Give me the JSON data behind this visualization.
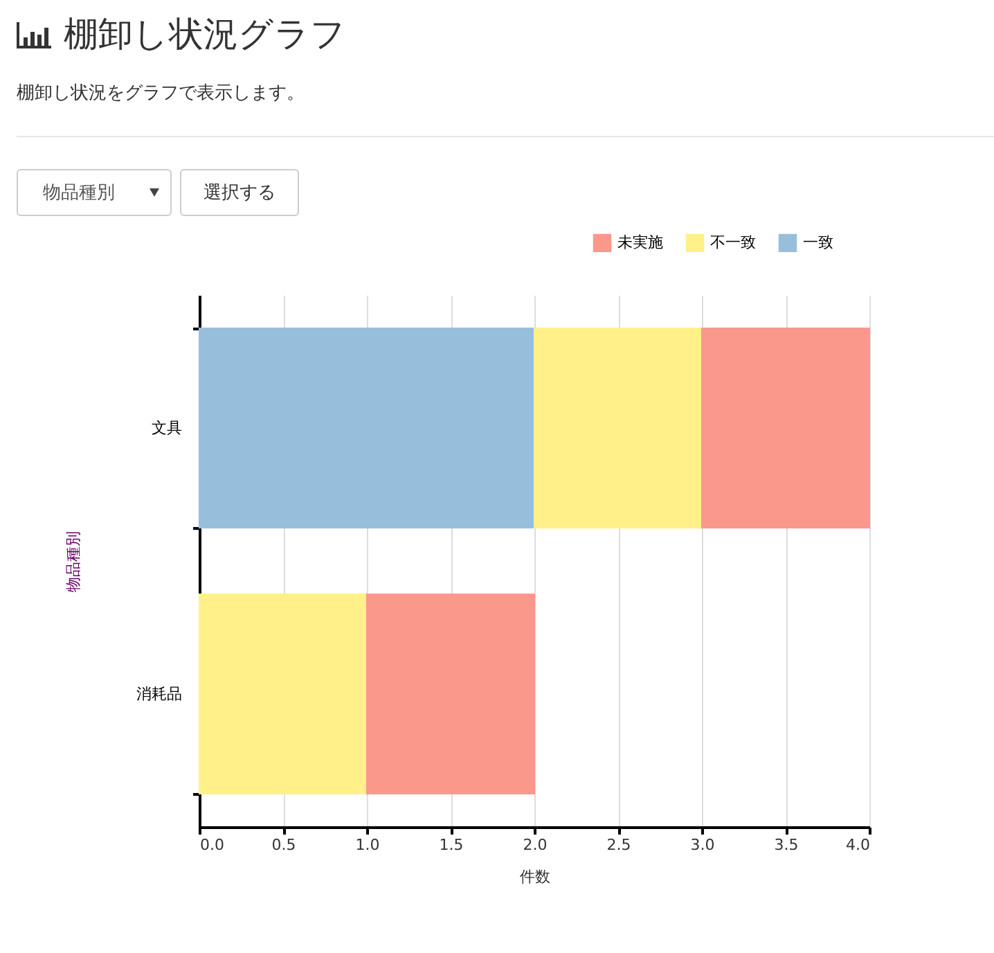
{
  "chart_data": {
    "type": "bar",
    "orientation": "horizontal",
    "stacked": true,
    "title": "棚卸し状況グラフ",
    "subtitle": "棚卸し状況をグラフで表示します。",
    "annotations": [
      "物品種別",
      "選択する"
    ],
    "categories": [
      "文具",
      "消耗品"
    ],
    "xlabel": "件数",
    "ylabel": "物品種別",
    "series": [
      {
        "name": "一致",
        "color": "#97bfdb",
        "values": [
          2,
          0
        ]
      },
      {
        "name": "不一致",
        "color": "#fff08a",
        "values": [
          1,
          1
        ]
      },
      {
        "name": "未実施",
        "color": "#f9988b",
        "values": [
          1,
          1
        ]
      }
    ],
    "xlim": [
      0,
      4
    ],
    "xticks": [
      {
        "value": 0,
        "label": "0.0"
      },
      {
        "value": 0.5,
        "label": "0.5"
      },
      {
        "value": 1,
        "label": "1.0"
      },
      {
        "value": 1.5,
        "label": "1.5"
      },
      {
        "value": 2,
        "label": "2.0"
      },
      {
        "value": 2.5,
        "label": "2.5"
      },
      {
        "value": 3,
        "label": "3.0"
      },
      {
        "value": 3.5,
        "label": "3.5"
      },
      {
        "value": 4,
        "label": "4.0"
      }
    ],
    "grid": "x",
    "legend": "top right"
  }
}
